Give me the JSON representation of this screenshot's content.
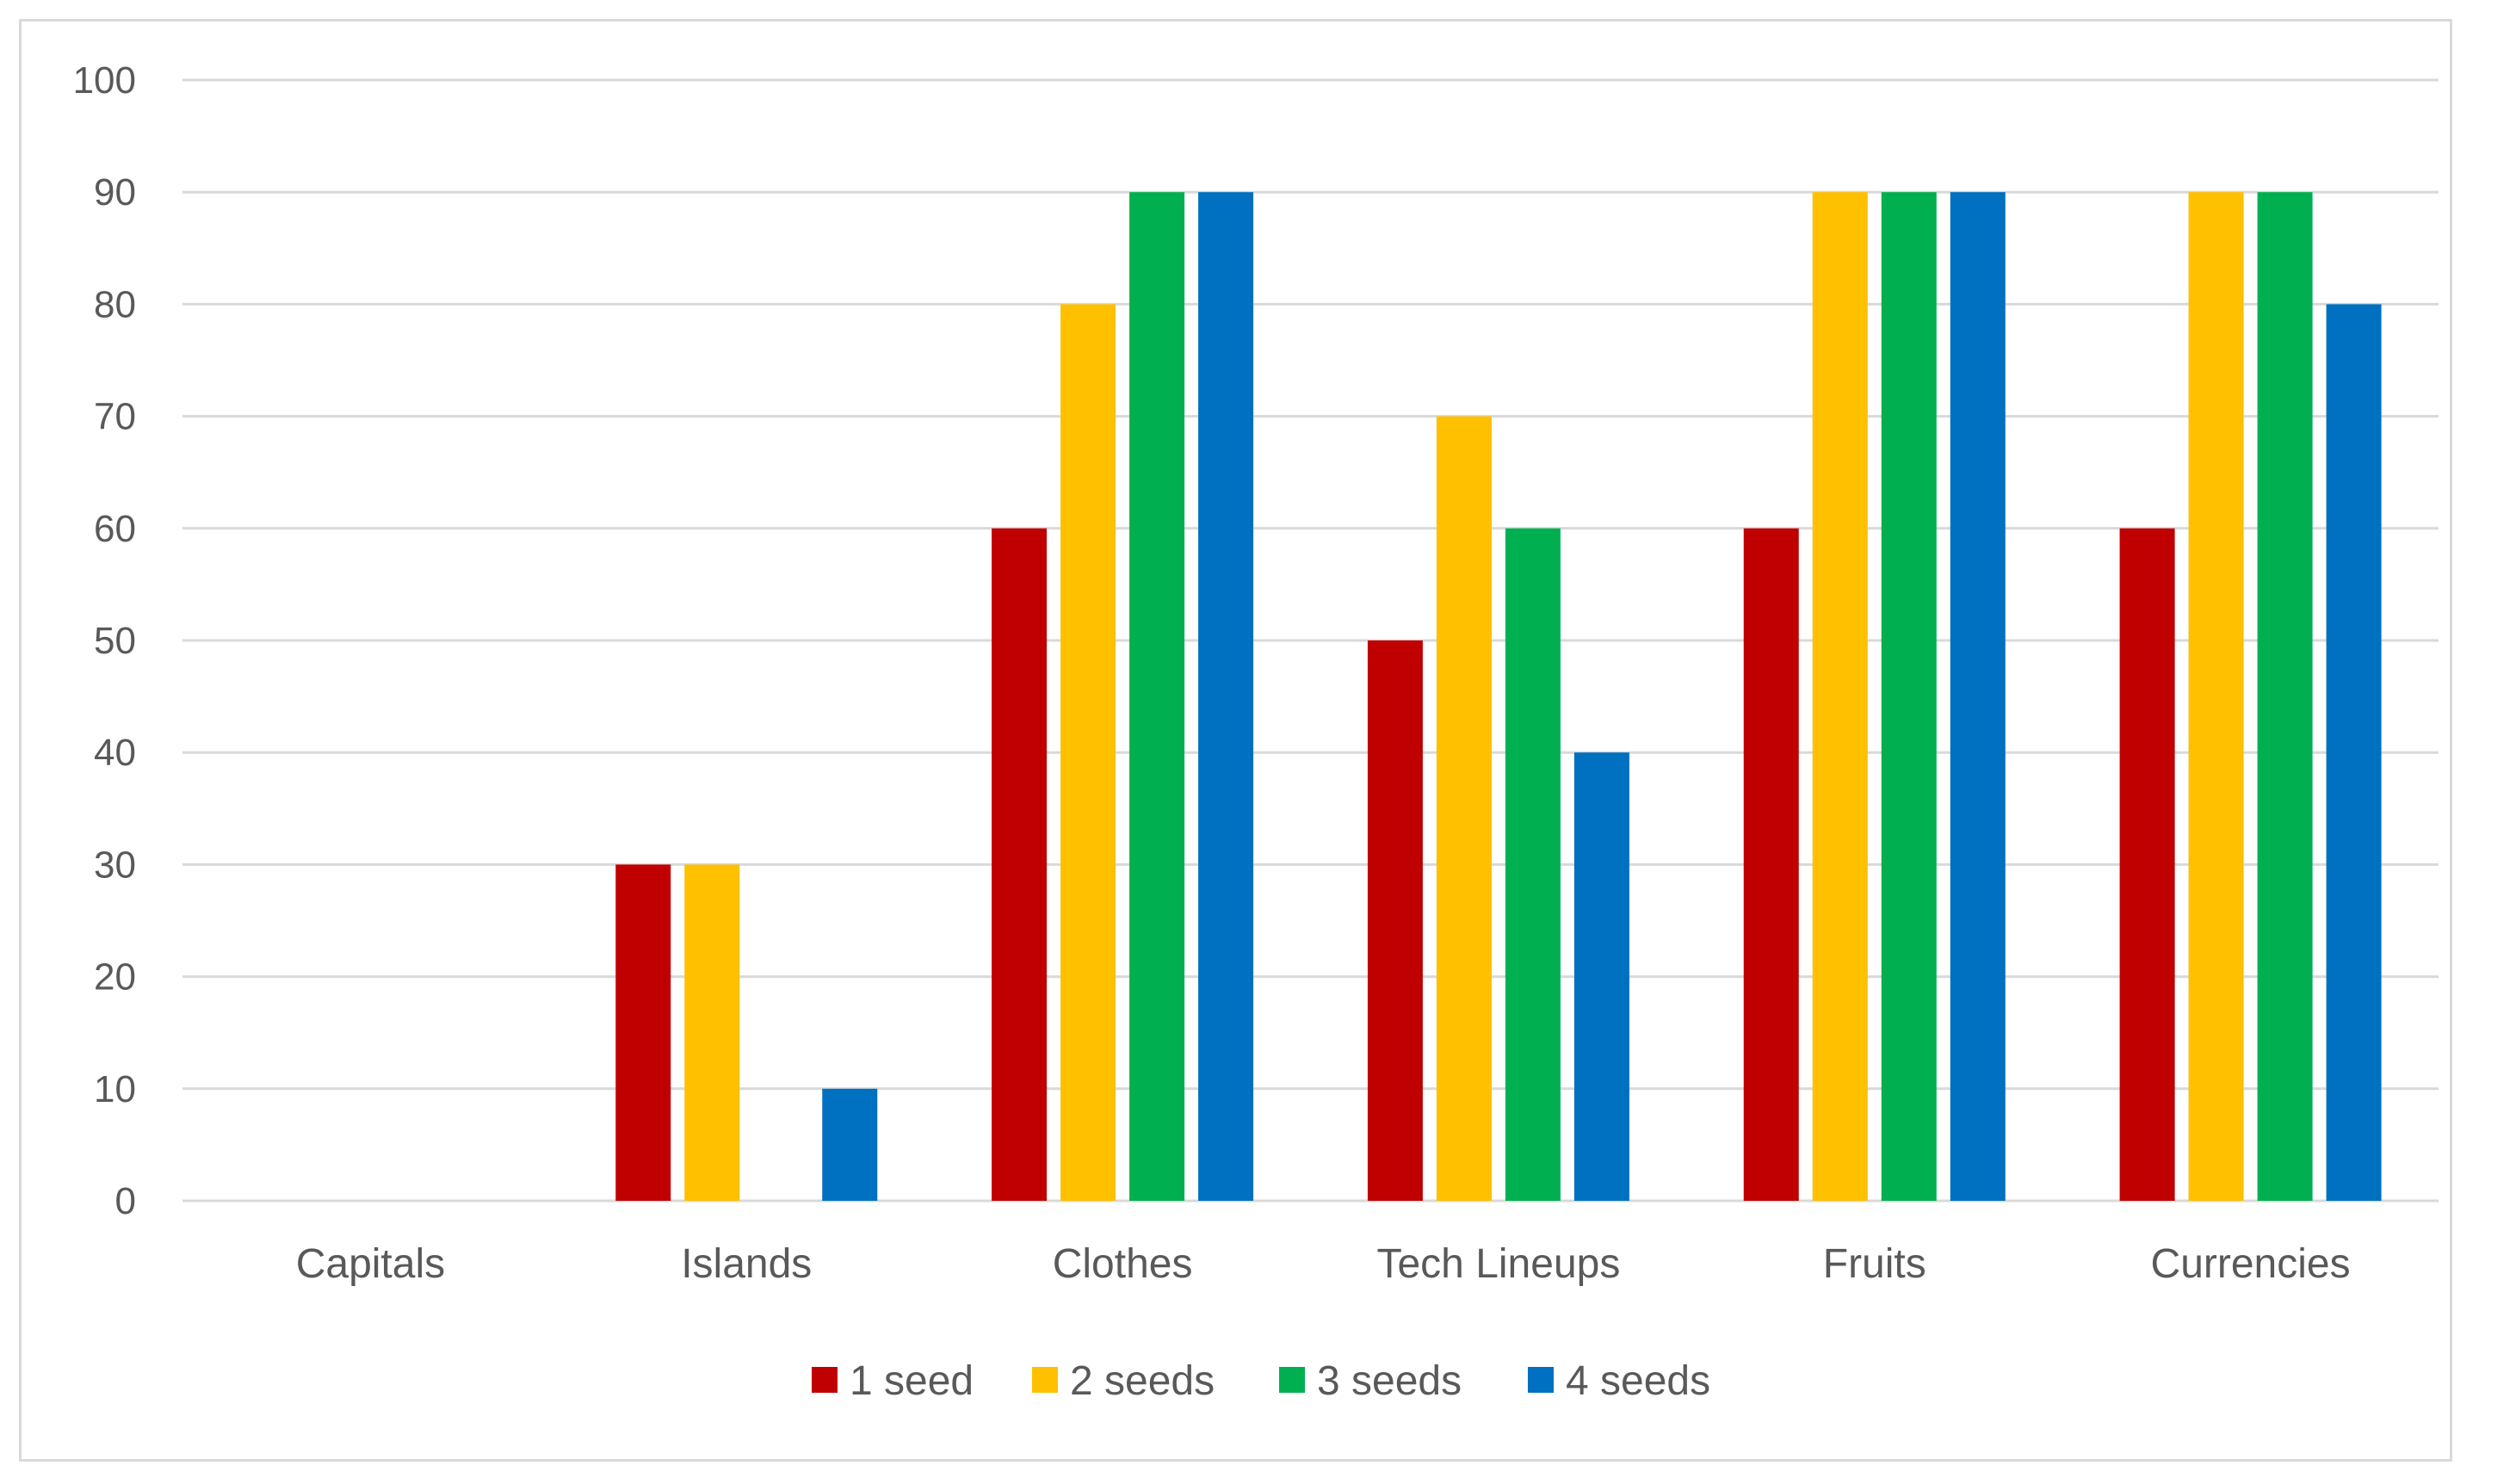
{
  "chart_data": {
    "type": "bar",
    "categories": [
      "Capitals",
      "Islands",
      "Clothes",
      "Tech Lineups",
      "Fruits",
      "Currencies"
    ],
    "series": [
      {
        "name": "1 seed",
        "color": "#c00000",
        "values": [
          0,
          30,
          60,
          50,
          60,
          60
        ]
      },
      {
        "name": "2 seeds",
        "color": "#ffc000",
        "values": [
          0,
          30,
          80,
          70,
          90,
          90
        ]
      },
      {
        "name": "3 seeds",
        "color": "#00b050",
        "values": [
          0,
          0,
          90,
          60,
          90,
          90
        ]
      },
      {
        "name": "4 seeds",
        "color": "#0070c0",
        "values": [
          0,
          10,
          90,
          40,
          90,
          80
        ]
      }
    ],
    "yticks": [
      "0",
      "10",
      "20",
      "30",
      "40",
      "50",
      "60",
      "70",
      "80",
      "90",
      "100"
    ],
    "ylim": [
      0,
      100
    ],
    "grid": true,
    "legend": "bottom"
  }
}
